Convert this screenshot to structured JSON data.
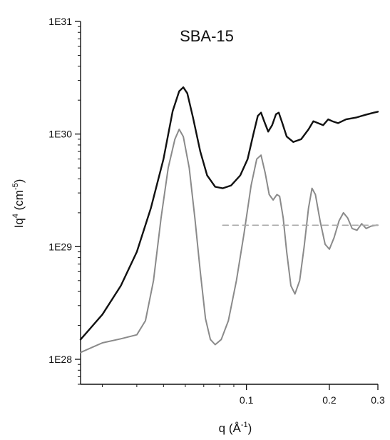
{
  "chart_data": {
    "type": "line",
    "title": "SBA-15",
    "xlabel_main": "q (Å",
    "xlabel_sup": "-1",
    "xlabel_close": ")",
    "ylabel_main": "Iq",
    "ylabel_sup1": "4",
    "ylabel_mid": " (cm",
    "ylabel_sup2": "-5",
    "ylabel_close": ")",
    "x_scale": "log",
    "y_scale": "log",
    "xlim": [
      0.025,
      0.3
    ],
    "ylim": [
      6e+27,
      1e+31
    ],
    "x_ticks": [
      {
        "value": 0.1,
        "label": "0.1"
      },
      {
        "value": 0.2,
        "label": "0.2"
      },
      {
        "value": 0.3,
        "label": "0.3"
      }
    ],
    "y_ticks": [
      {
        "value": 1e+28,
        "label": "1E28"
      },
      {
        "value": 1e+29,
        "label": "1E29"
      },
      {
        "value": 1e+30,
        "label": "1E30"
      },
      {
        "value": 1e+31,
        "label": "1E31"
      }
    ],
    "grid": false,
    "series": [
      {
        "style": "solid",
        "color": "#111111",
        "points": [
          [
            0.025,
            1.5e+28
          ],
          [
            0.03,
            2.5e+28
          ],
          [
            0.035,
            4.5e+28
          ],
          [
            0.04,
            9e+28
          ],
          [
            0.045,
            2.2e+29
          ],
          [
            0.05,
            6e+29
          ],
          [
            0.054,
            1.6e+30
          ],
          [
            0.057,
            2.4e+30
          ],
          [
            0.059,
            2.6e+30
          ],
          [
            0.061,
            2.3e+30
          ],
          [
            0.064,
            1.4e+30
          ],
          [
            0.068,
            7e+29
          ],
          [
            0.072,
            4.3e+29
          ],
          [
            0.077,
            3.4e+29
          ],
          [
            0.082,
            3.3e+29
          ],
          [
            0.088,
            3.5e+29
          ],
          [
            0.095,
            4.3e+29
          ],
          [
            0.101,
            6e+29
          ],
          [
            0.106,
            1e+30
          ],
          [
            0.11,
            1.45e+30
          ],
          [
            0.113,
            1.55e+30
          ],
          [
            0.116,
            1.3e+30
          ],
          [
            0.12,
            1.05e+30
          ],
          [
            0.124,
            1.2e+30
          ],
          [
            0.128,
            1.5e+30
          ],
          [
            0.131,
            1.55e+30
          ],
          [
            0.135,
            1.25e+30
          ],
          [
            0.14,
            9.5e+29
          ],
          [
            0.148,
            8.5e+29
          ],
          [
            0.158,
            9e+29
          ],
          [
            0.168,
            1.1e+30
          ],
          [
            0.175,
            1.3e+30
          ],
          [
            0.182,
            1.25e+30
          ],
          [
            0.19,
            1.2e+30
          ],
          [
            0.198,
            1.35e+30
          ],
          [
            0.205,
            1.3e+30
          ],
          [
            0.215,
            1.25e+30
          ],
          [
            0.23,
            1.35e+30
          ],
          [
            0.25,
            1.4e+30
          ],
          [
            0.27,
            1.48e+30
          ],
          [
            0.29,
            1.55e+30
          ],
          [
            0.3,
            1.58e+30
          ]
        ]
      },
      {
        "style": "solid",
        "color": "#8a8a8a",
        "points": [
          [
            0.025,
            1.15e+28
          ],
          [
            0.03,
            1.4e+28
          ],
          [
            0.035,
            1.52e+28
          ],
          [
            0.04,
            1.65e+28
          ],
          [
            0.043,
            2.2e+28
          ],
          [
            0.046,
            5e+28
          ],
          [
            0.049,
            1.8e+29
          ],
          [
            0.052,
            5e+29
          ],
          [
            0.055,
            9e+29
          ],
          [
            0.057,
            1.1e+30
          ],
          [
            0.059,
            9.5e+29
          ],
          [
            0.062,
            5e+29
          ],
          [
            0.065,
            1.8e+29
          ],
          [
            0.068,
            6e+28
          ],
          [
            0.071,
            2.3e+28
          ],
          [
            0.074,
            1.5e+28
          ],
          [
            0.077,
            1.35e+28
          ],
          [
            0.081,
            1.5e+28
          ],
          [
            0.086,
            2.2e+28
          ],
          [
            0.092,
            5e+28
          ],
          [
            0.098,
            1.3e+29
          ],
          [
            0.104,
            3.5e+29
          ],
          [
            0.109,
            6e+29
          ],
          [
            0.113,
            6.5e+29
          ],
          [
            0.117,
            4.5e+29
          ],
          [
            0.121,
            2.9e+29
          ],
          [
            0.125,
            2.6e+29
          ],
          [
            0.129,
            2.9e+29
          ],
          [
            0.132,
            2.8e+29
          ],
          [
            0.136,
            1.8e+29
          ],
          [
            0.14,
            9e+28
          ],
          [
            0.145,
            4.5e+28
          ],
          [
            0.15,
            3.8e+28
          ],
          [
            0.156,
            5e+28
          ],
          [
            0.162,
            1e+29
          ],
          [
            0.168,
            2.2e+29
          ],
          [
            0.173,
            3.3e+29
          ],
          [
            0.178,
            2.9e+29
          ],
          [
            0.185,
            1.7e+29
          ],
          [
            0.193,
            1.05e+29
          ],
          [
            0.2,
            9.5e+28
          ],
          [
            0.208,
            1.2e+29
          ],
          [
            0.217,
            1.7e+29
          ],
          [
            0.225,
            2e+29
          ],
          [
            0.233,
            1.8e+29
          ],
          [
            0.242,
            1.45e+29
          ],
          [
            0.252,
            1.4e+29
          ],
          [
            0.262,
            1.6e+29
          ],
          [
            0.272,
            1.45e+29
          ],
          [
            0.283,
            1.52e+29
          ],
          [
            0.295,
            1.55e+29
          ],
          [
            0.3,
            1.55e+29
          ]
        ]
      },
      {
        "style": "dashed",
        "color": "#aaaaaa",
        "points": [
          [
            0.082,
            1.55e+29
          ],
          [
            0.3,
            1.55e+29
          ]
        ]
      }
    ]
  }
}
